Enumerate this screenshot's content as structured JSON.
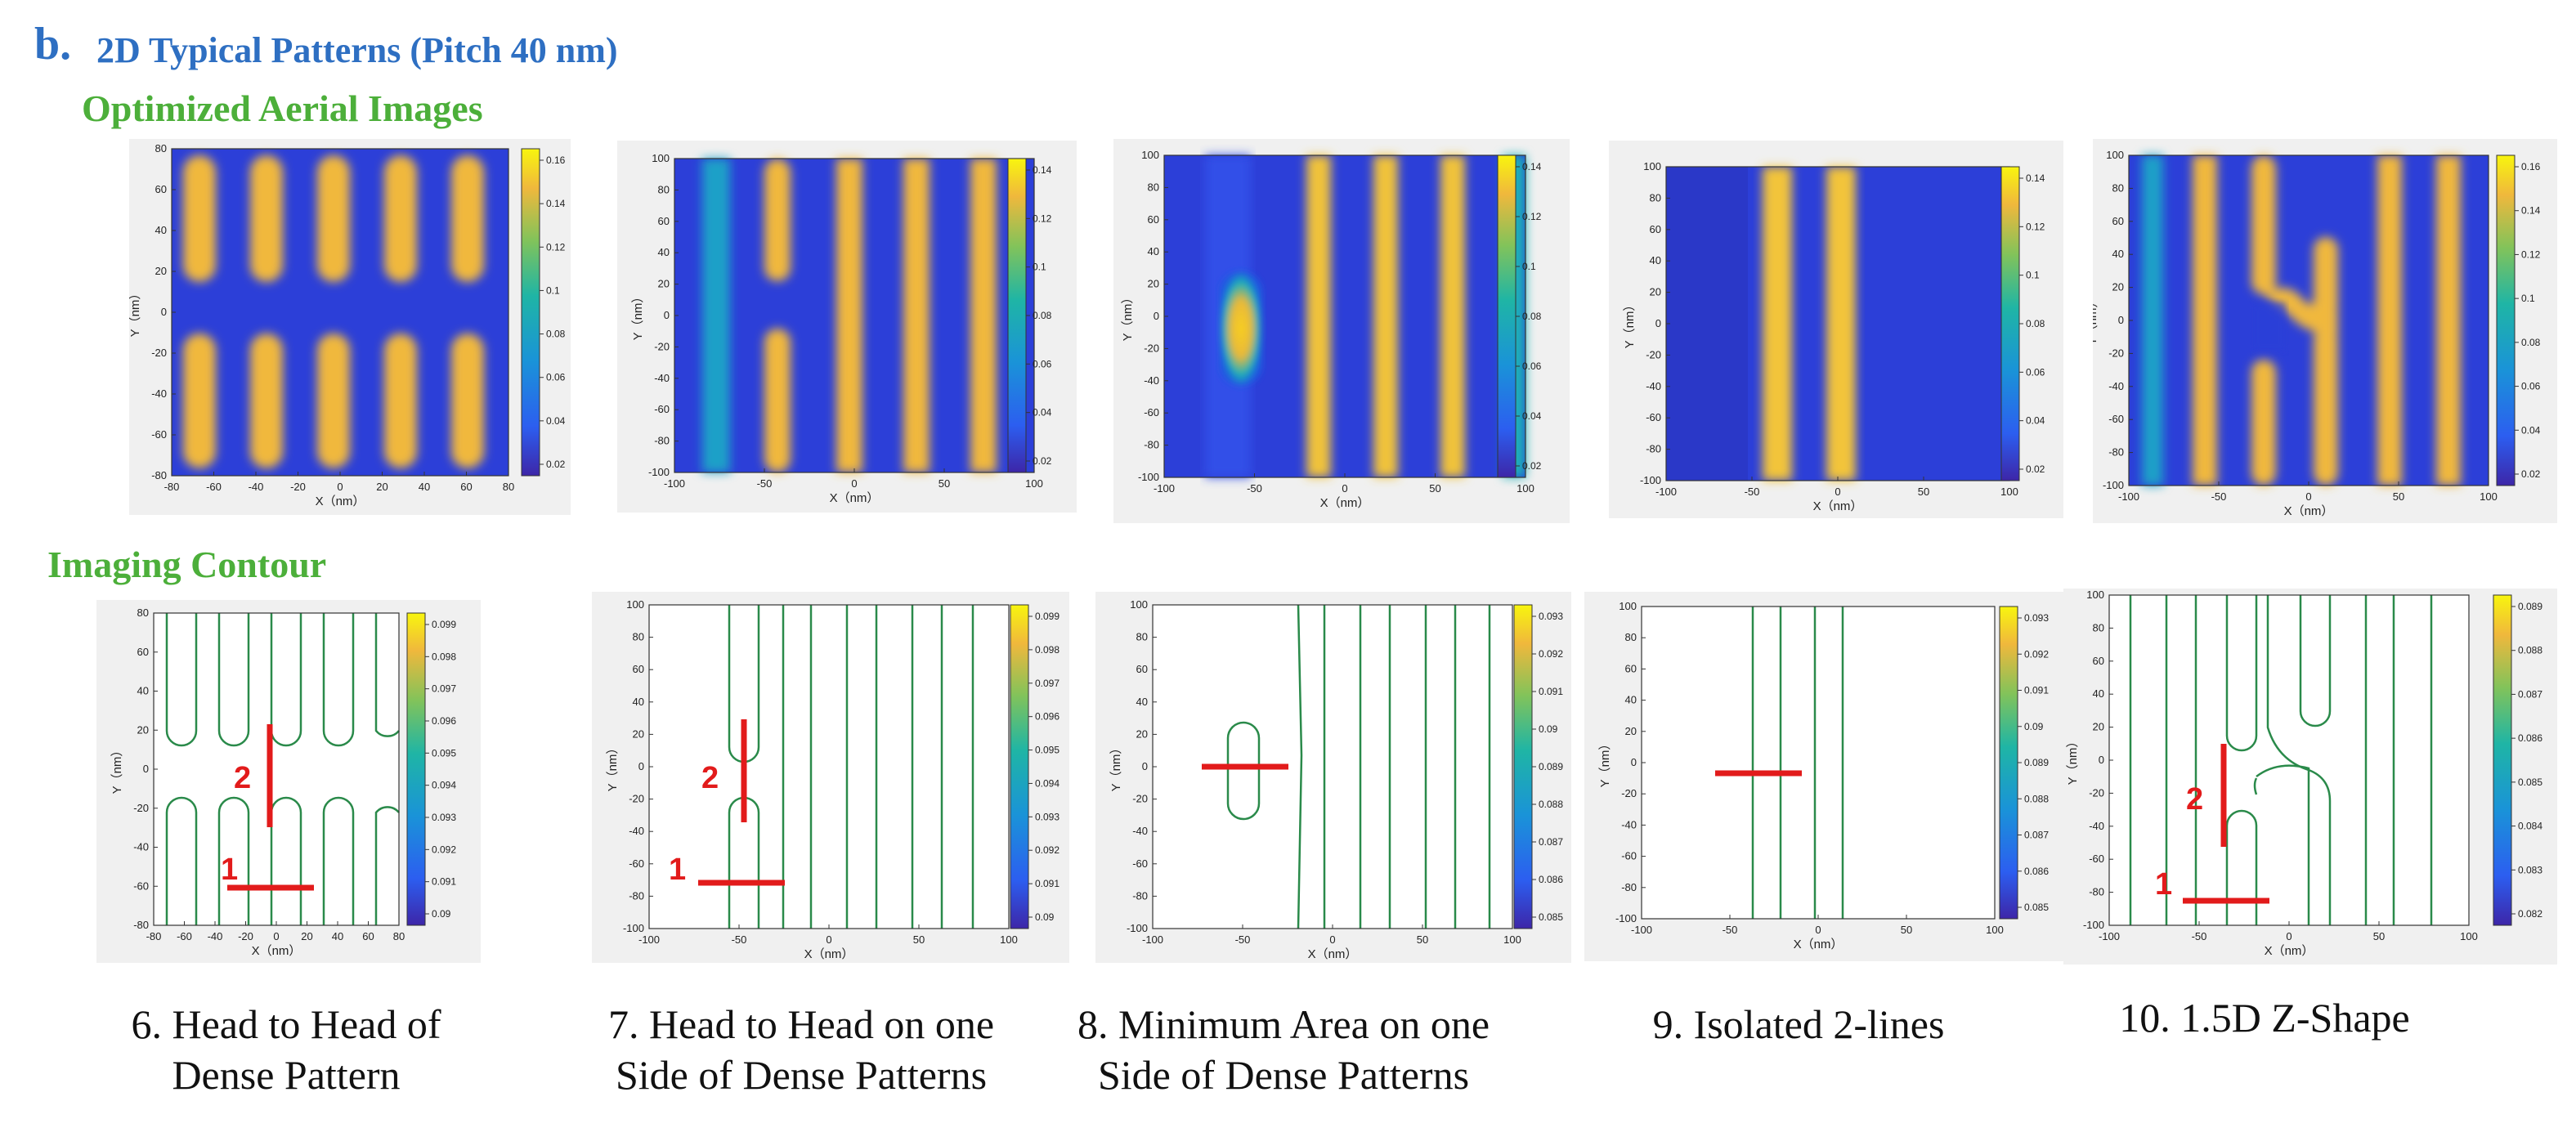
{
  "header": {
    "label": "b.",
    "title": "2D  Typical Patterns (Pitch 40 nm)"
  },
  "sections": {
    "top": "Optimized Aerial Images",
    "bottom": "Imaging Contour"
  },
  "axes": {
    "x_label": "X（nm）",
    "y_label": "Y（nm）"
  },
  "colors": {
    "header": "#2e6fc2",
    "section": "#4caf3a",
    "marker": "#e21b1b"
  },
  "aerial_panels": [
    {
      "id": "p6",
      "x_ticks": [
        "-80",
        "-60",
        "-40",
        "-20",
        "0",
        "20",
        "40",
        "60",
        "80"
      ],
      "y_ticks": [
        "80",
        "60",
        "40",
        "20",
        "0",
        "-20",
        "-40",
        "-60",
        "-80"
      ],
      "cb_ticks": [
        "0.16",
        "0.14",
        "0.12",
        "0.1",
        "0.08",
        "0.06",
        "0.04",
        "0.02"
      ]
    },
    {
      "id": "p7",
      "x_ticks": [
        "-100",
        "-50",
        "0",
        "50",
        "100"
      ],
      "y_ticks": [
        "100",
        "80",
        "60",
        "40",
        "20",
        "0",
        "-20",
        "-40",
        "-60",
        "-80",
        "-100"
      ],
      "cb_ticks": [
        "0.14",
        "0.12",
        "0.1",
        "0.08",
        "0.06",
        "0.04",
        "0.02"
      ]
    },
    {
      "id": "p8",
      "x_ticks": [
        "-100",
        "-50",
        "0",
        "50",
        "100"
      ],
      "y_ticks": [
        "100",
        "80",
        "60",
        "40",
        "20",
        "0",
        "-20",
        "-40",
        "-60",
        "-80",
        "-100"
      ],
      "cb_ticks": [
        "0.14",
        "0.12",
        "0.1",
        "0.08",
        "0.06",
        "0.04",
        "0.02"
      ]
    },
    {
      "id": "p9",
      "x_ticks": [
        "-100",
        "-50",
        "0",
        "50",
        "100"
      ],
      "y_ticks": [
        "100",
        "80",
        "60",
        "40",
        "20",
        "0",
        "-20",
        "-40",
        "-60",
        "-80",
        "-100"
      ],
      "cb_ticks": [
        "0.14",
        "0.12",
        "0.1",
        "0.08",
        "0.06",
        "0.04",
        "0.02"
      ]
    },
    {
      "id": "p10",
      "x_ticks": [
        "-100",
        "-50",
        "0",
        "50",
        "100"
      ],
      "y_ticks": [
        "100",
        "80",
        "60",
        "40",
        "20",
        "0",
        "-20",
        "-40",
        "-60",
        "-80",
        "-100"
      ],
      "cb_ticks": [
        "0.16",
        "0.14",
        "0.12",
        "0.1",
        "0.08",
        "0.06",
        "0.04",
        "0.02"
      ]
    }
  ],
  "contour_panels": [
    {
      "id": "c6",
      "x_ticks": [
        "-80",
        "-60",
        "-40",
        "-20",
        "0",
        "20",
        "40",
        "60",
        "80"
      ],
      "y_ticks": [
        "80",
        "60",
        "40",
        "20",
        "0",
        "-20",
        "-40",
        "-60",
        "-80"
      ],
      "cb_ticks": [
        "0.099",
        "0.098",
        "0.097",
        "0.096",
        "0.095",
        "0.094",
        "0.093",
        "0.092",
        "0.091",
        "0.09"
      ],
      "markers": [
        "1",
        "2"
      ]
    },
    {
      "id": "c7",
      "x_ticks": [
        "-100",
        "-50",
        "0",
        "50",
        "100"
      ],
      "y_ticks": [
        "100",
        "80",
        "60",
        "40",
        "20",
        "0",
        "-20",
        "-40",
        "-60",
        "-80",
        "-100"
      ],
      "cb_ticks": [
        "0.099",
        "0.098",
        "0.097",
        "0.096",
        "0.095",
        "0.094",
        "0.093",
        "0.092",
        "0.091",
        "0.09"
      ],
      "markers": [
        "1",
        "2"
      ]
    },
    {
      "id": "c8",
      "x_ticks": [
        "-100",
        "-50",
        "0",
        "50",
        "100"
      ],
      "y_ticks": [
        "100",
        "80",
        "60",
        "40",
        "20",
        "0",
        "-20",
        "-40",
        "-60",
        "-80",
        "-100"
      ],
      "cb_ticks": [
        "0.093",
        "0.092",
        "0.091",
        "0.09",
        "0.089",
        "0.088",
        "0.087",
        "0.086",
        "0.085"
      ],
      "markers": []
    },
    {
      "id": "c9",
      "x_ticks": [
        "-100",
        "-50",
        "0",
        "50",
        "100"
      ],
      "y_ticks": [
        "100",
        "80",
        "60",
        "40",
        "20",
        "0",
        "-20",
        "-40",
        "-60",
        "-80",
        "-100"
      ],
      "cb_ticks": [
        "0.093",
        "0.092",
        "0.091",
        "0.09",
        "0.089",
        "0.088",
        "0.087",
        "0.086",
        "0.085"
      ],
      "markers": []
    },
    {
      "id": "c10",
      "x_ticks": [
        "-100",
        "-50",
        "0",
        "50",
        "100"
      ],
      "y_ticks": [
        "100",
        "80",
        "60",
        "40",
        "20",
        "0",
        "-20",
        "-40",
        "-60",
        "-80",
        "-100"
      ],
      "cb_ticks": [
        "0.089",
        "0.088",
        "0.087",
        "0.086",
        "0.085",
        "0.084",
        "0.083",
        "0.082"
      ],
      "markers": [
        "1",
        "2"
      ]
    }
  ],
  "captions": [
    {
      "line1": "6. Head to Head of",
      "line2": "Dense Pattern"
    },
    {
      "line1": "7. Head to Head  on one",
      "line2": "Side of Dense Patterns"
    },
    {
      "line1": "8. Minimum Area on one",
      "line2": "Side of Dense Patterns"
    },
    {
      "line1": "9. Isolated 2-lines",
      "line2": ""
    },
    {
      "line1": "10. 1.5D Z-Shape",
      "line2": ""
    }
  ]
}
